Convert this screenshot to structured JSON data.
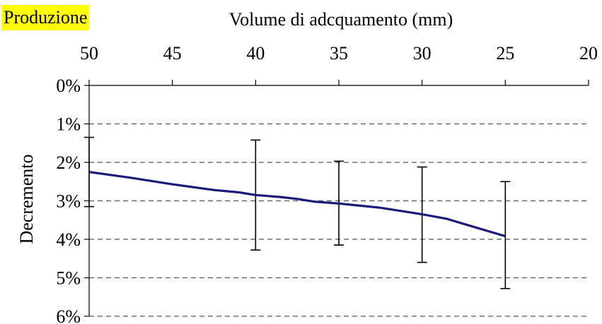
{
  "badge": {
    "label": "Produzione"
  },
  "chart_data": {
    "type": "line",
    "xlabel": "Volume di adcquamento (mm)",
    "ylabel": "Decremento",
    "x_axis_position": "top",
    "x_reversed": true,
    "y_reversed": true,
    "xlim": [
      50,
      20
    ],
    "ylim": [
      0,
      6
    ],
    "xticks": [
      50,
      45,
      40,
      35,
      30,
      25,
      20
    ],
    "xtick_labels": [
      "50",
      "45",
      "40",
      "35",
      "30",
      "25",
      "20"
    ],
    "yticks": [
      0,
      1,
      2,
      3,
      4,
      5,
      6
    ],
    "ytick_labels": [
      "0%",
      "1%",
      "2%",
      "3%",
      "4%",
      "5%",
      "6%"
    ],
    "grid": {
      "y": true,
      "style": "dashed",
      "x": false
    },
    "legend": "none",
    "colors": {
      "line": "#1a1a7a",
      "error_bars": "#000000",
      "grid": "#555555"
    },
    "series": [
      {
        "x": [
          50,
          47.5,
          45,
          42.5,
          41,
          40,
          38.5,
          37.5,
          36.5,
          35,
          32.5,
          30,
          28.5,
          27.5,
          25
        ],
        "y": [
          2.25,
          2.4,
          2.57,
          2.72,
          2.78,
          2.85,
          2.9,
          2.95,
          3.02,
          3.07,
          3.18,
          3.35,
          3.47,
          3.6,
          3.92
        ]
      }
    ],
    "error_bars": [
      {
        "x": 50,
        "low": 1.35,
        "high": 3.15
      },
      {
        "x": 40,
        "low": 1.42,
        "high": 4.28
      },
      {
        "x": 35,
        "low": 1.97,
        "high": 4.15
      },
      {
        "x": 30,
        "low": 2.12,
        "high": 4.6
      },
      {
        "x": 25,
        "low": 2.5,
        "high": 5.28
      }
    ]
  }
}
